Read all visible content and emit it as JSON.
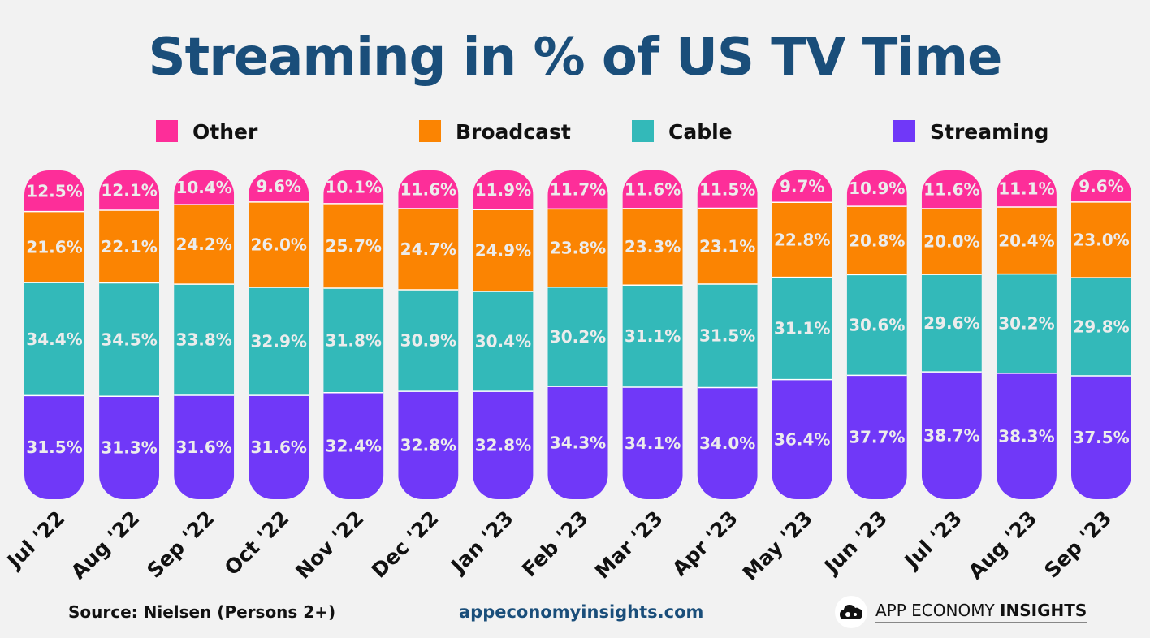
{
  "title": "Streaming in % of US TV Time",
  "footer": {
    "source": "Source: Nielsen (Persons 2+)",
    "url": "appeconomyinsights.com",
    "brand_regular": "APP ECONOMY ",
    "brand_bold": "INSIGHTS"
  },
  "colors": {
    "background": "#f2f2f2",
    "title": "#1a4e7a",
    "streaming": "#7038f8",
    "cable": "#33b9b9",
    "broadcast": "#fb8402",
    "other": "#fd2e99"
  },
  "chart_data": {
    "type": "bar",
    "stacked": true,
    "title": "Streaming in % of US TV Time",
    "xlabel": "",
    "ylabel": "",
    "legend_position": "top",
    "categories": [
      "Jul '22",
      "Aug '22",
      "Sep '22",
      "Oct '22",
      "Nov '22",
      "Dec '22",
      "Jan '23",
      "Feb '23",
      "Mar '23",
      "Apr '23",
      "May '23",
      "Jun '23",
      "Jul '23",
      "Aug '23",
      "Sep '23"
    ],
    "series": [
      {
        "name": "Streaming",
        "color": "#7038f8",
        "values": [
          31.5,
          31.3,
          31.6,
          31.6,
          32.4,
          32.8,
          32.8,
          34.3,
          34.1,
          34.0,
          36.4,
          37.7,
          38.7,
          38.3,
          37.5
        ]
      },
      {
        "name": "Cable",
        "color": "#33b9b9",
        "values": [
          34.4,
          34.5,
          33.8,
          32.9,
          31.8,
          30.9,
          30.4,
          30.2,
          31.1,
          31.5,
          31.1,
          30.6,
          29.6,
          30.2,
          29.8
        ]
      },
      {
        "name": "Broadcast",
        "color": "#fb8402",
        "values": [
          21.6,
          22.1,
          24.2,
          26.0,
          25.7,
          24.7,
          24.9,
          23.8,
          23.3,
          23.1,
          22.8,
          20.8,
          20.0,
          20.4,
          23.0
        ]
      },
      {
        "name": "Other",
        "color": "#fd2e99",
        "values": [
          12.5,
          12.1,
          10.4,
          9.6,
          10.1,
          11.6,
          11.9,
          11.7,
          11.6,
          11.5,
          9.7,
          10.9,
          11.6,
          11.1,
          9.6
        ]
      }
    ],
    "labels": [
      [
        "31.5%",
        "31.3%",
        "31.6%",
        "31.6%",
        "32.4%",
        "32.8%",
        "32.8%",
        "34.3%",
        "34.1%",
        "34.0%",
        "36.4%",
        "37.7%",
        "38.7%",
        "38.3%",
        "37.5%"
      ],
      [
        "34.4%",
        "34.5%",
        "33.8%",
        "32.9%",
        "31.8%",
        "30.9%",
        "30.4%",
        "30.2%",
        "31.1%",
        "31.5%",
        "31.1%",
        "30.6%",
        "29.6%",
        "30.2%",
        "29.8%"
      ],
      [
        "21.6%",
        "22.1%",
        "24.2%",
        "26.0%",
        "25.7%",
        "24.7%",
        "24.9%",
        "23.8%",
        "23.3%",
        "23.1%",
        "22.8%",
        "20.8%",
        "20.0%",
        "20.4%",
        "23.0%"
      ],
      [
        "12.5%",
        "12.1%",
        "10.4%",
        "9.6%",
        "10.1%",
        "11.6%",
        "11.9%",
        "11.7%",
        "11.6%",
        "11.5%",
        "9.7%",
        "10.9%",
        "11.6%",
        "11.1%",
        "9.6%"
      ]
    ],
    "ylim": [
      0,
      100
    ]
  }
}
